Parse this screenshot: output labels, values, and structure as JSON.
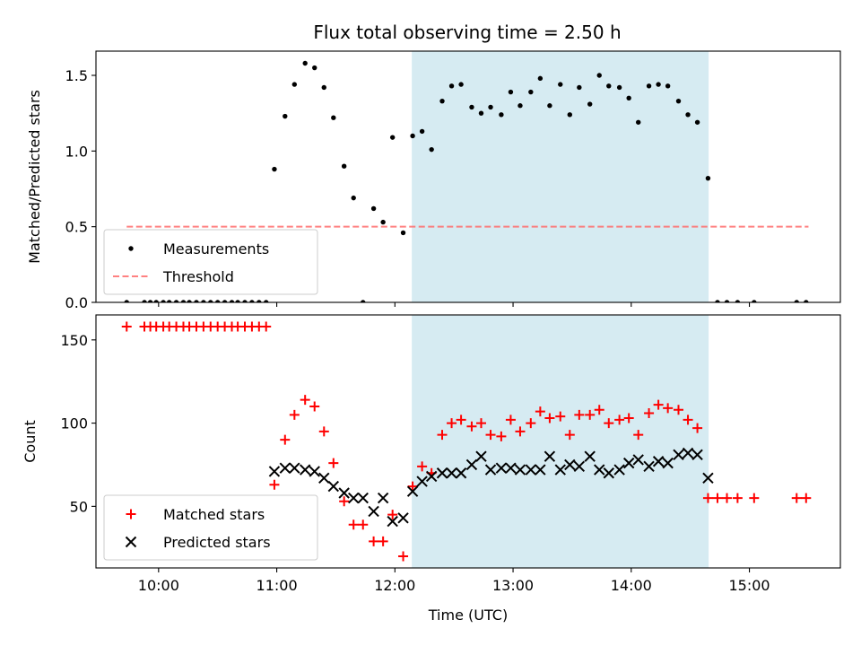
{
  "figure": {
    "title": "Flux total observing time = 2.50 h"
  },
  "chart_data": [
    {
      "type": "scatter",
      "panel": "top",
      "title": "Flux total observing time = 2.50 h",
      "xlabel": "",
      "ylabel": "Matched/Predicted stars",
      "xlim": [
        9.47,
        15.77
      ],
      "ylim": [
        0,
        1.66
      ],
      "yticks": [
        0.0,
        0.5,
        1.0,
        1.5
      ],
      "ytick_labels": [
        "0.0",
        "0.5",
        "1.0",
        "1.5"
      ],
      "grid": false,
      "legend_position": "lower-left",
      "shaded_span": {
        "x": [
          12.143,
          14.655
        ],
        "color": "#add8e6"
      },
      "threshold": {
        "name": "Threshold",
        "y": 0.5,
        "x": [
          9.73,
          15.5
        ],
        "color": "#ff6b6b"
      },
      "series": [
        {
          "name": "Measurements",
          "color": "#000000",
          "marker": "dot",
          "x": [
            9.73,
            9.88,
            9.93,
            9.98,
            10.04,
            10.09,
            10.15,
            10.21,
            10.26,
            10.32,
            10.38,
            10.44,
            10.5,
            10.56,
            10.62,
            10.67,
            10.73,
            10.79,
            10.85,
            10.91,
            10.98,
            11.07,
            11.15,
            11.24,
            11.32,
            11.4,
            11.48,
            11.57,
            11.65,
            11.73,
            11.82,
            11.9,
            11.98,
            12.07,
            12.15,
            12.23,
            12.31,
            12.4,
            12.48,
            12.56,
            12.65,
            12.73,
            12.81,
            12.9,
            12.98,
            13.06,
            13.15,
            13.23,
            13.31,
            13.4,
            13.48,
            13.56,
            13.65,
            13.73,
            13.81,
            13.9,
            13.98,
            14.06,
            14.15,
            14.23,
            14.31,
            14.4,
            14.48,
            14.56,
            14.65,
            14.73,
            14.81,
            14.9,
            15.04,
            15.4,
            15.48
          ],
          "y": [
            0,
            0,
            0,
            0,
            0,
            0,
            0,
            0,
            0,
            0,
            0,
            0,
            0,
            0,
            0,
            0,
            0,
            0,
            0,
            0,
            0.88,
            1.23,
            1.44,
            1.58,
            1.55,
            1.42,
            1.22,
            0.9,
            0.69,
            0.0,
            0.62,
            0.53,
            1.09,
            0.46,
            1.1,
            1.13,
            1.01,
            1.33,
            1.43,
            1.44,
            1.29,
            1.25,
            1.29,
            1.24,
            1.39,
            1.3,
            1.39,
            1.48,
            1.3,
            1.44,
            1.24,
            1.42,
            1.31,
            1.5,
            1.43,
            1.42,
            1.35,
            1.19,
            1.43,
            1.44,
            1.43,
            1.33,
            1.24,
            1.19,
            0.82,
            0,
            0,
            0,
            0,
            0,
            0
          ]
        }
      ]
    },
    {
      "type": "scatter",
      "panel": "bottom",
      "xlabel": "Time (UTC)",
      "ylabel": "Count",
      "xlim": [
        9.47,
        15.77
      ],
      "ylim": [
        13,
        165
      ],
      "xticks": [
        10,
        11,
        12,
        13,
        14,
        15
      ],
      "xtick_labels": [
        "10:00",
        "11:00",
        "12:00",
        "13:00",
        "14:00",
        "15:00"
      ],
      "yticks": [
        50,
        100,
        150
      ],
      "ytick_labels": [
        "50",
        "100",
        "150"
      ],
      "grid": false,
      "legend_position": "lower-left",
      "shaded_span": {
        "x": [
          12.143,
          14.655
        ],
        "color": "#add8e6"
      },
      "series": [
        {
          "name": "Matched stars",
          "color": "#ff0000",
          "marker": "plus",
          "x": [
            9.73,
            9.88,
            9.93,
            9.98,
            10.04,
            10.09,
            10.15,
            10.21,
            10.26,
            10.32,
            10.38,
            10.44,
            10.5,
            10.56,
            10.62,
            10.67,
            10.73,
            10.79,
            10.85,
            10.91,
            10.98,
            11.07,
            11.15,
            11.24,
            11.32,
            11.4,
            11.48,
            11.57,
            11.65,
            11.73,
            11.82,
            11.9,
            11.98,
            12.07,
            12.15,
            12.23,
            12.31,
            12.4,
            12.48,
            12.56,
            12.65,
            12.73,
            12.81,
            12.9,
            12.98,
            13.06,
            13.15,
            13.23,
            13.31,
            13.4,
            13.48,
            13.56,
            13.65,
            13.73,
            13.81,
            13.9,
            13.98,
            14.06,
            14.15,
            14.23,
            14.31,
            14.4,
            14.48,
            14.56,
            14.65,
            14.73,
            14.81,
            14.9,
            15.04,
            15.4,
            15.48
          ],
          "y": [
            158,
            158,
            158,
            158,
            158,
            158,
            158,
            158,
            158,
            158,
            158,
            158,
            158,
            158,
            158,
            158,
            158,
            158,
            158,
            158,
            63,
            90,
            105,
            114,
            110,
            95,
            76,
            53,
            39,
            39,
            29,
            29,
            45,
            20,
            62,
            74,
            70,
            93,
            100,
            102,
            98,
            100,
            93,
            92,
            102,
            95,
            100,
            107,
            103,
            104,
            93,
            105,
            105,
            108,
            100,
            102,
            103,
            93,
            106,
            111,
            109,
            108,
            102,
            97,
            55,
            55,
            55,
            55,
            55,
            55,
            55
          ]
        },
        {
          "name": "Predicted stars",
          "color": "#000000",
          "marker": "x",
          "x": [
            10.98,
            11.07,
            11.15,
            11.24,
            11.32,
            11.4,
            11.48,
            11.57,
            11.65,
            11.73,
            11.82,
            11.9,
            11.98,
            12.07,
            12.15,
            12.23,
            12.31,
            12.4,
            12.48,
            12.56,
            12.65,
            12.73,
            12.81,
            12.9,
            12.98,
            13.06,
            13.15,
            13.23,
            13.31,
            13.4,
            13.48,
            13.56,
            13.65,
            13.73,
            13.81,
            13.9,
            13.98,
            14.06,
            14.15,
            14.23,
            14.31,
            14.4,
            14.48,
            14.56,
            14.65
          ],
          "y": [
            71,
            73,
            73,
            72,
            71,
            67,
            62,
            58,
            55,
            55,
            47,
            55,
            41,
            43,
            59,
            65,
            68,
            70,
            70,
            70,
            75,
            80,
            72,
            73,
            73,
            72,
            72,
            72,
            80,
            72,
            75,
            74,
            80,
            72,
            70,
            72,
            76,
            78,
            74,
            77,
            76,
            81,
            82,
            81,
            67
          ]
        }
      ]
    }
  ]
}
